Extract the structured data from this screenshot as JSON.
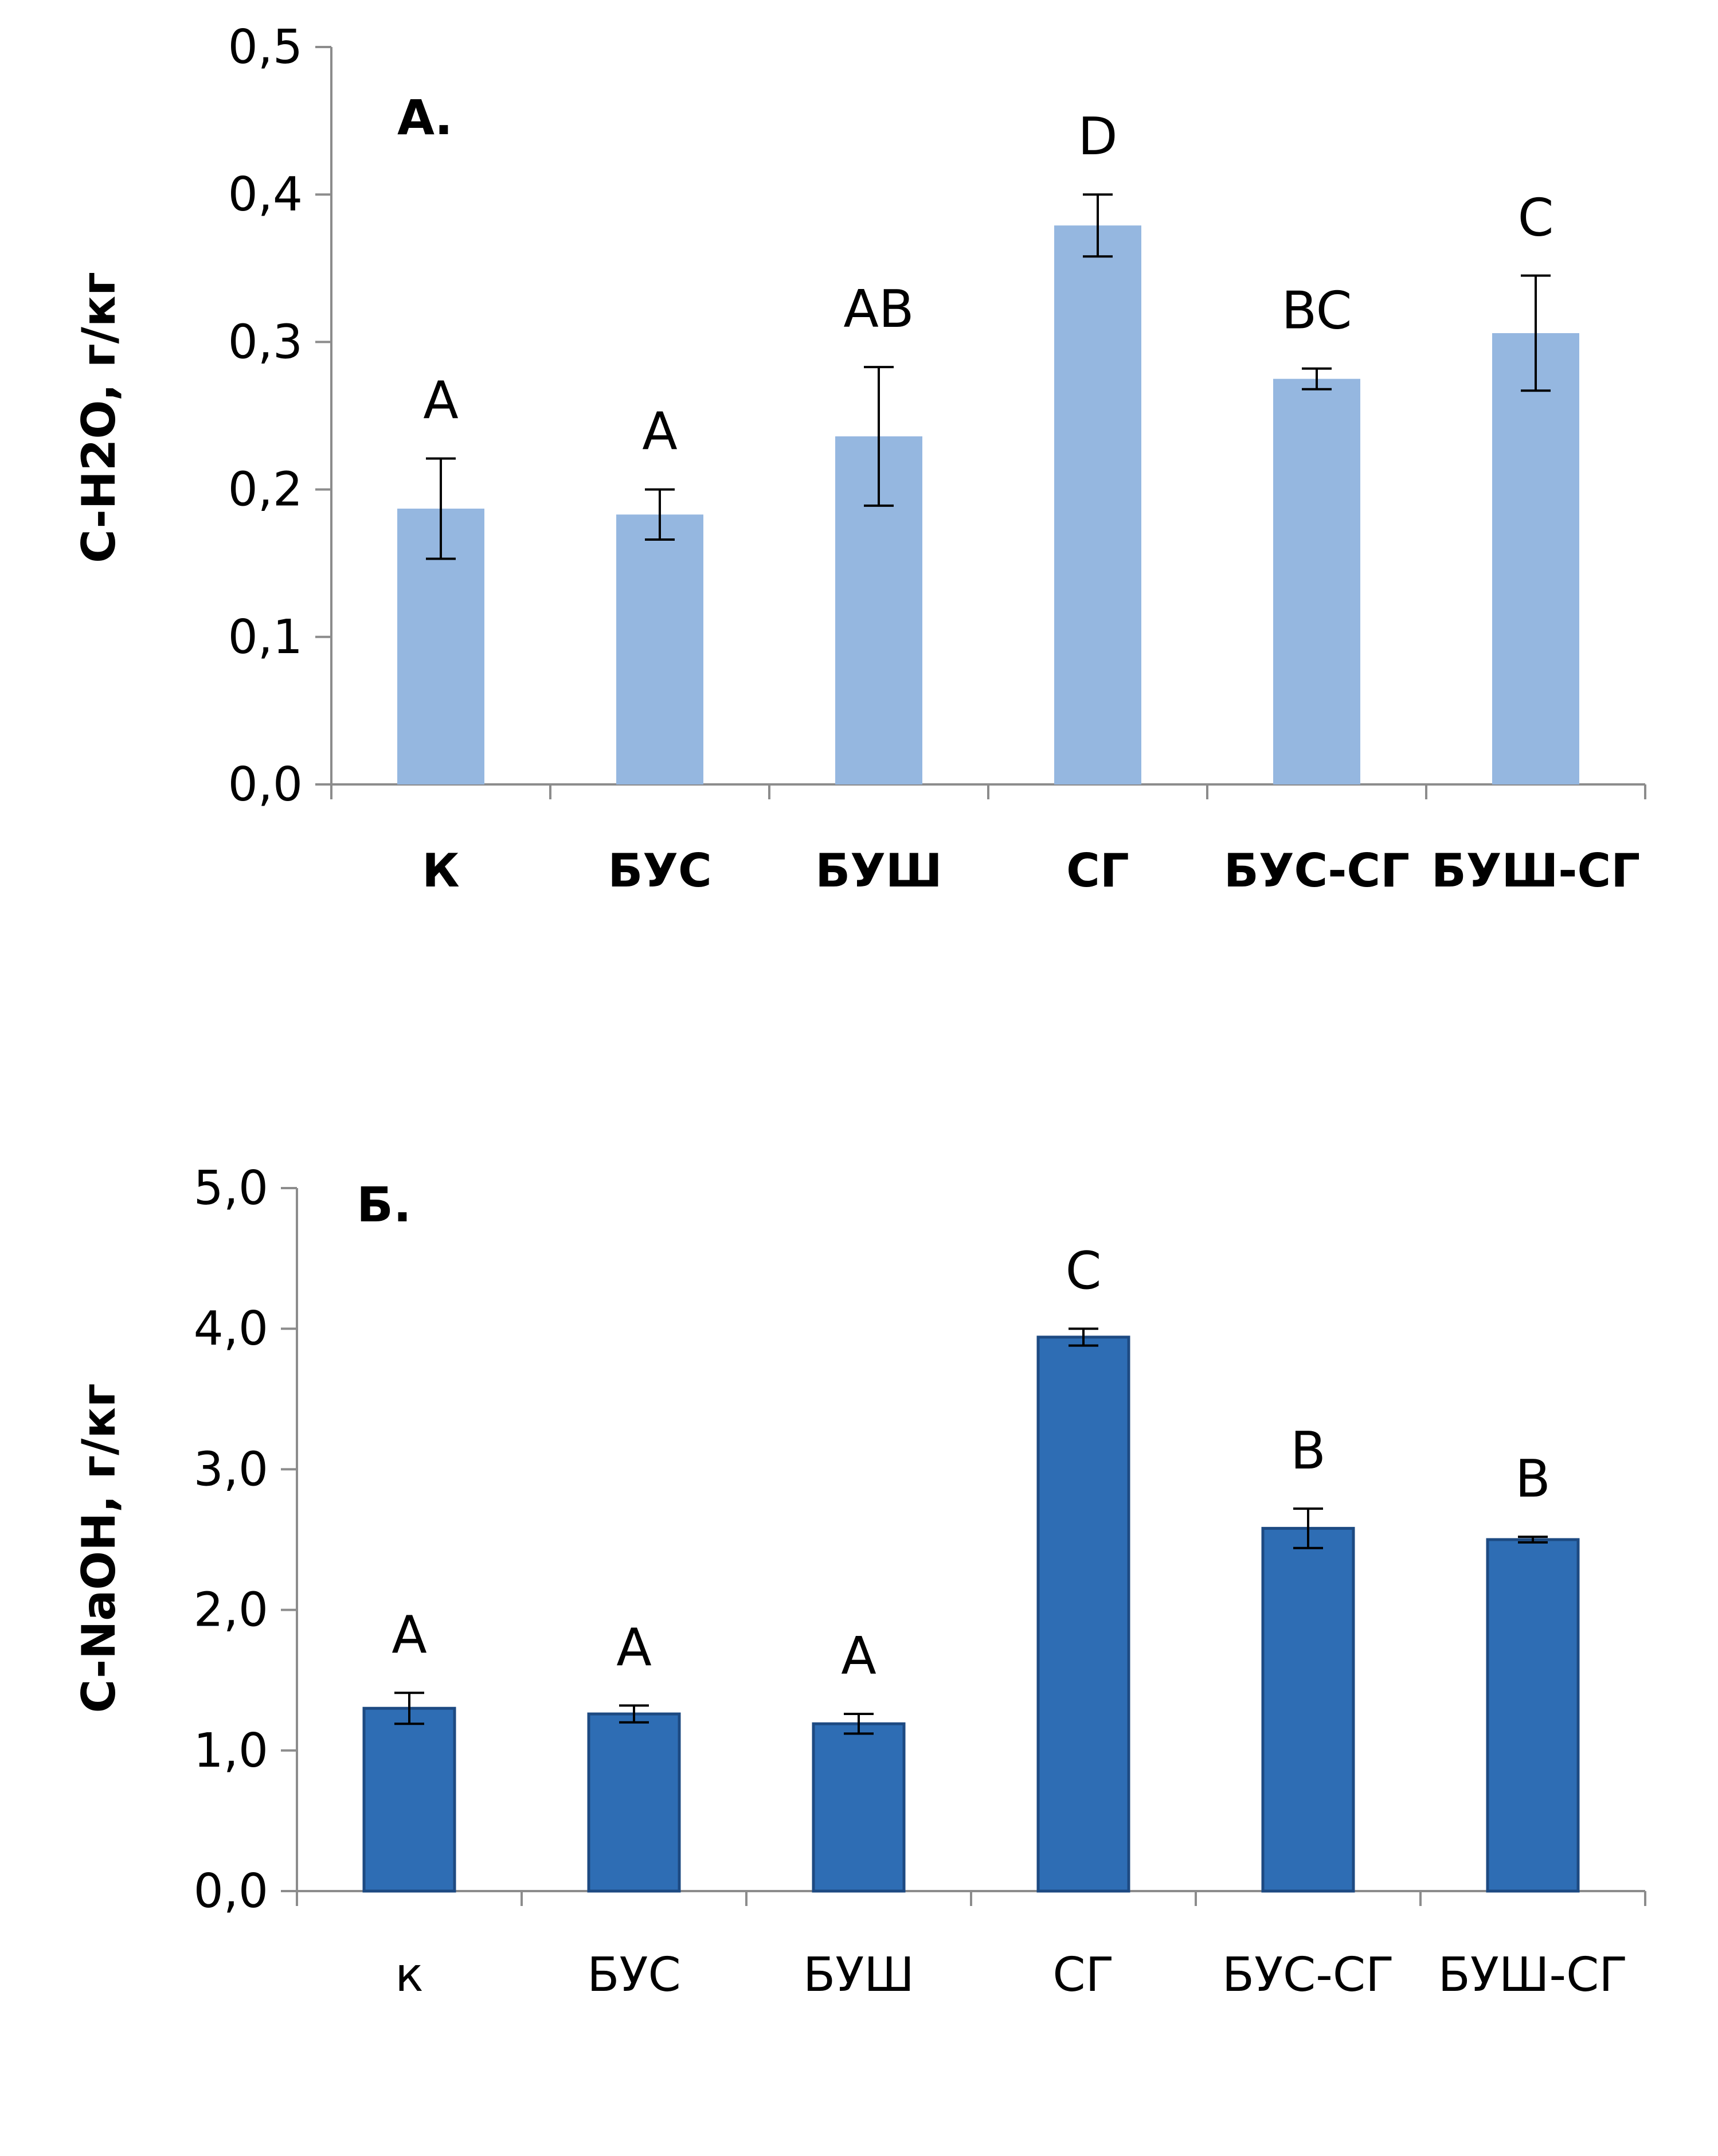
{
  "chart_data": [
    {
      "type": "bar",
      "panel_label": "А.",
      "ylabel": "C-H2O, г/кг",
      "xlabel": "",
      "categories": [
        "К",
        "БУС",
        "БУШ",
        "СГ",
        "БУС-СГ",
        "БУШ-СГ"
      ],
      "values": [
        0.187,
        0.183,
        0.236,
        0.379,
        0.275,
        0.306
      ],
      "errors": [
        0.034,
        0.017,
        0.047,
        0.021,
        0.007,
        0.039
      ],
      "significance": [
        "A",
        "A",
        "AB",
        "D",
        "BC",
        "C"
      ],
      "ylim": [
        0,
        0.5
      ],
      "yticks": [
        "0,0",
        "0,1",
        "0,2",
        "0,3",
        "0,4",
        "0,5"
      ],
      "grid": false,
      "color": "#95b7e0"
    },
    {
      "type": "bar",
      "panel_label": "Б.",
      "ylabel": "C-NaOH, г/кг",
      "xlabel": "",
      "categories": [
        "к",
        "БУС",
        "БУШ",
        "СГ",
        "БУС-СГ",
        "БУШ-СГ"
      ],
      "values": [
        1.3,
        1.26,
        1.19,
        3.94,
        2.58,
        2.5
      ],
      "errors": [
        0.11,
        0.06,
        0.07,
        0.06,
        0.14,
        0.02
      ],
      "significance": [
        "A",
        "A",
        "A",
        "C",
        "B",
        "B"
      ],
      "ylim": [
        0,
        5
      ],
      "yticks": [
        "0,0",
        "1,0",
        "2,0",
        "3,0",
        "4,0",
        "5,0"
      ],
      "grid": false,
      "color": "#2e6db4",
      "edge_color": "#1d4a82"
    }
  ]
}
